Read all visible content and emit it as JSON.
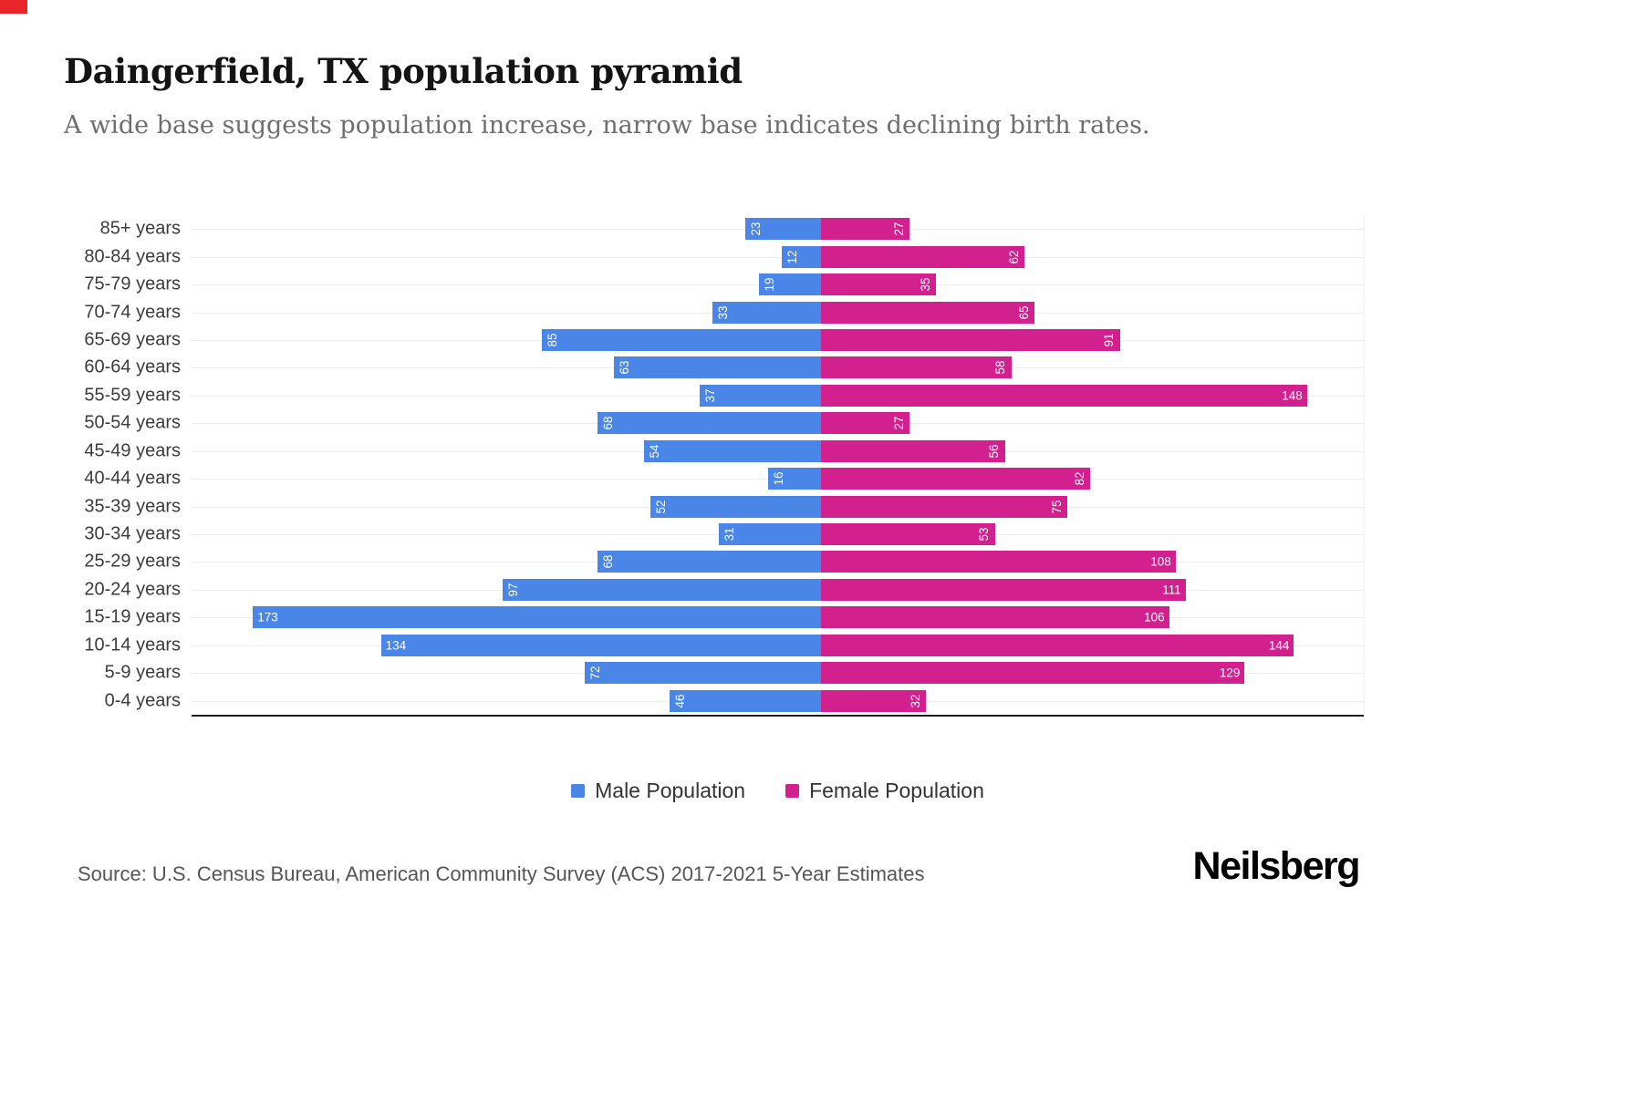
{
  "header": {
    "title": "Daingerfield, TX population pyramid",
    "subtitle": "A wide base suggests population increase, narrow base indicates declining birth rates."
  },
  "chart_data": {
    "type": "bar",
    "variant": "population-pyramid",
    "orientation": "horizontal",
    "categories": [
      "85+ years",
      "80-84 years",
      "75-79 years",
      "70-74 years",
      "65-69 years",
      "60-64 years",
      "55-59 years",
      "50-54 years",
      "45-49 years",
      "40-44 years",
      "35-39 years",
      "30-34 years",
      "25-29 years",
      "20-24 years",
      "15-19 years",
      "10-14 years",
      "5-9 years",
      "0-4 years"
    ],
    "series": [
      {
        "name": "Male Population",
        "side": "left",
        "color": "#4a86e8",
        "values": [
          23,
          12,
          19,
          33,
          85,
          63,
          37,
          68,
          54,
          16,
          52,
          31,
          68,
          97,
          173,
          134,
          72,
          46
        ]
      },
      {
        "name": "Female Population",
        "side": "right",
        "color": "#d2218f",
        "values": [
          27,
          62,
          35,
          65,
          91,
          58,
          148,
          27,
          56,
          82,
          75,
          53,
          108,
          111,
          106,
          144,
          129,
          32
        ]
      }
    ],
    "value_axis": {
      "left_max": 190,
      "right_max": 165
    },
    "grid": "horizontal-row-lines",
    "legend_position": "bottom",
    "data_labels": "white, inside bar at outer end; values >= 100 horizontal, values < 100 rotated vertical"
  },
  "footer": {
    "source": "Source: U.S. Census Bureau, American Community Survey (ACS) 2017-2021 5-Year Estimates",
    "brand": "Neilsberg"
  }
}
